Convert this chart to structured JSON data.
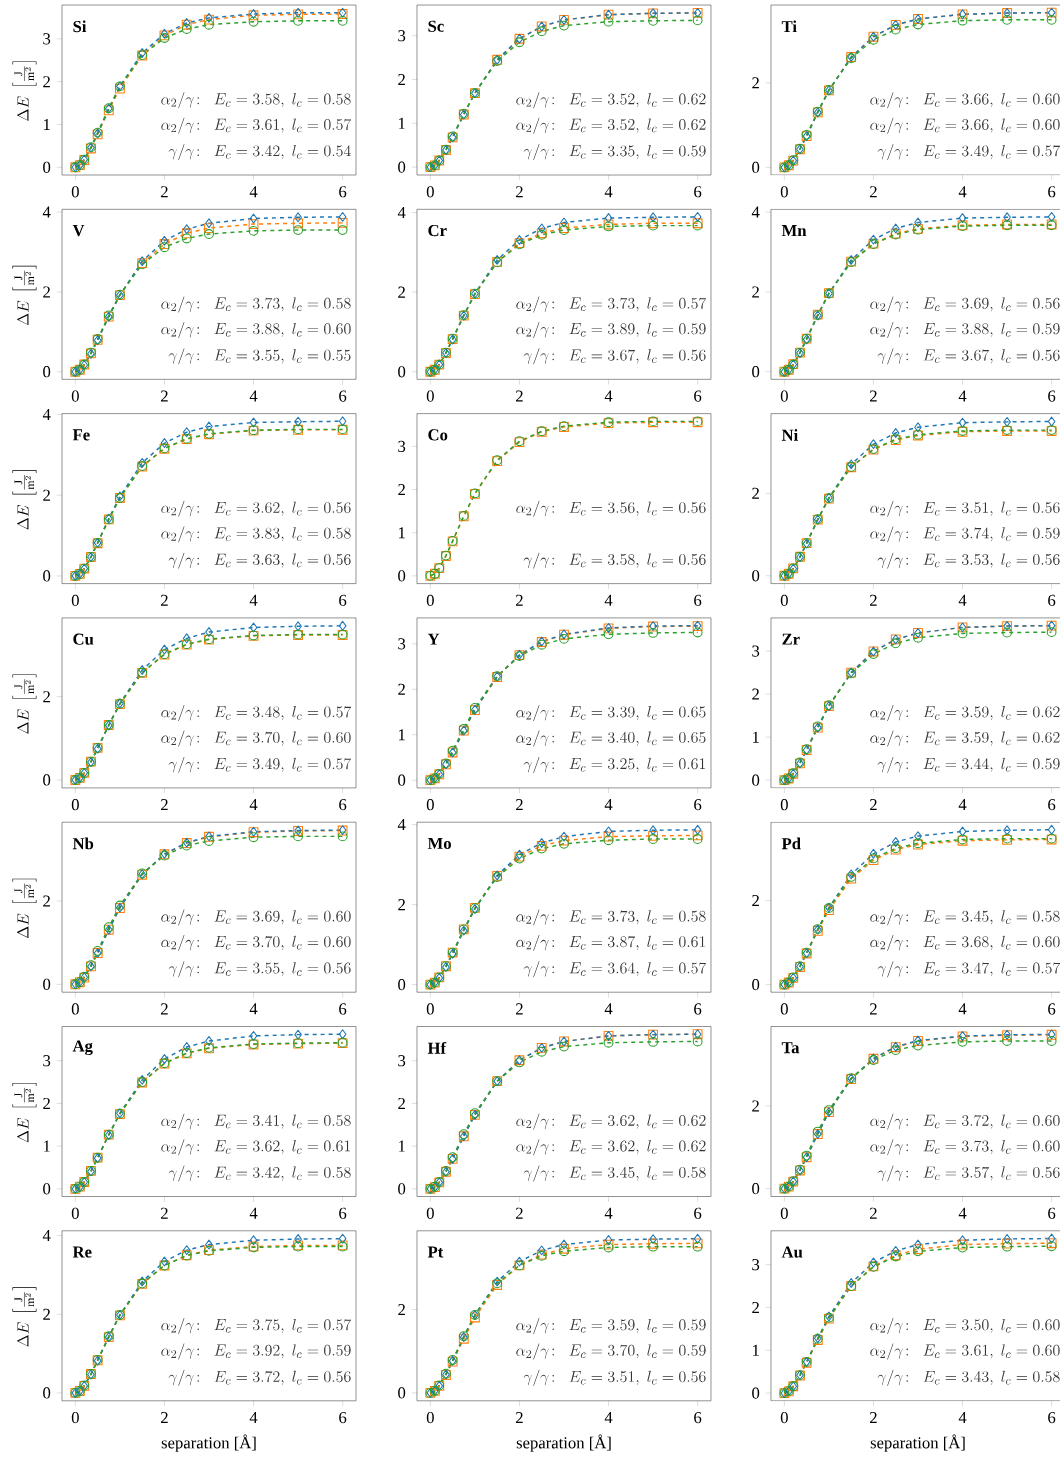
{
  "chart_data": [
    {
      "type": "line",
      "title": "Si",
      "ylabel": "\\Delta E\\;\\left[\\frac{\\mathrm{J}}{\\mathrm{m}^2}\\right]",
      "line_style": "dashed",
      "xlim": [
        -0.3,
        6.3
      ],
      "ylim": [
        -0.18,
        3.79
      ],
      "xticks": [
        0,
        2,
        4,
        6
      ],
      "yticks": [
        0,
        1,
        2,
        3
      ],
      "x": [
        0,
        0.1,
        0.2,
        0.35,
        0.5,
        0.75,
        1,
        1.5,
        2,
        2.5,
        3,
        4,
        5,
        6
      ],
      "series": [
        {
          "color": "#ff7f0e",
          "marker": "square",
          "values": [
            0,
            0.05,
            0.17,
            0.44,
            0.77,
            1.33,
            1.84,
            2.61,
            3.08,
            3.33,
            3.45,
            3.55,
            3.57,
            3.58
          ]
        },
        {
          "color": "#1f77b4",
          "marker": "diamond",
          "values": [
            0,
            0.05,
            0.18,
            0.46,
            0.79,
            1.37,
            1.89,
            2.67,
            3.12,
            3.37,
            3.49,
            3.58,
            3.61,
            3.61
          ]
        },
        {
          "color": "#2ca02c",
          "marker": "circle",
          "values": [
            0,
            0.05,
            0.18,
            0.47,
            0.81,
            1.38,
            1.89,
            2.62,
            3.02,
            3.23,
            3.33,
            3.4,
            3.42,
            3.42
          ]
        }
      ],
      "annotations": [
        "\\alpha_2/\\gamma\\!:\\;\\; E_c = 3.58,\\; l_c = 0.58",
        "\\alpha_2/\\gamma\\!:\\;\\; E_c = 3.61,\\; l_c = 0.57",
        "\\gamma/\\gamma\\!:\\;\\; E_c = 3.42,\\; l_c = 0.54"
      ]
    },
    {
      "type": "line",
      "title": "Sc",
      "line_style": "dashed",
      "xlim": [
        -0.3,
        6.3
      ],
      "ylim": [
        -0.18,
        3.7
      ],
      "xticks": [
        0,
        2,
        4,
        6
      ],
      "yticks": [
        0,
        1,
        2,
        3
      ],
      "x": [
        0,
        0.1,
        0.2,
        0.35,
        0.5,
        0.75,
        1,
        1.5,
        2,
        2.5,
        3,
        4,
        5,
        6
      ],
      "series": [
        {
          "color": "#ff7f0e",
          "marker": "square",
          "values": [
            0,
            0.04,
            0.15,
            0.39,
            0.68,
            1.2,
            1.69,
            2.45,
            2.93,
            3.21,
            3.36,
            3.48,
            3.51,
            3.52
          ]
        },
        {
          "color": "#1f77b4",
          "marker": "diamond",
          "values": [
            0,
            0.04,
            0.15,
            0.39,
            0.68,
            1.2,
            1.69,
            2.45,
            2.93,
            3.21,
            3.36,
            3.48,
            3.51,
            3.52
          ]
        },
        {
          "color": "#2ca02c",
          "marker": "circle",
          "values": [
            0,
            0.04,
            0.15,
            0.4,
            0.7,
            1.22,
            1.69,
            2.42,
            2.85,
            3.1,
            3.23,
            3.32,
            3.34,
            3.35
          ]
        }
      ],
      "annotations": [
        "\\alpha_2/\\gamma\\!:\\;\\; E_c = 3.52,\\; l_c = 0.62",
        "\\alpha_2/\\gamma\\!:\\;\\; E_c = 3.52,\\; l_c = 0.62",
        "\\gamma/\\gamma\\!:\\;\\; E_c = 3.35,\\; l_c = 0.59"
      ]
    },
    {
      "type": "line",
      "title": "Ti",
      "line_style": "dashed",
      "xlim": [
        -0.3,
        6.3
      ],
      "ylim": [
        -0.18,
        3.84
      ],
      "xticks": [
        0,
        2,
        4,
        6
      ],
      "yticks": [
        0,
        2
      ],
      "x": [
        0,
        0.1,
        0.2,
        0.35,
        0.5,
        0.75,
        1,
        1.5,
        2,
        2.5,
        3,
        4,
        5,
        6
      ],
      "series": [
        {
          "color": "#ff7f0e",
          "marker": "square",
          "values": [
            0,
            0.05,
            0.16,
            0.43,
            0.74,
            1.3,
            1.82,
            2.61,
            3.09,
            3.37,
            3.51,
            3.62,
            3.65,
            3.66
          ]
        },
        {
          "color": "#1f77b4",
          "marker": "diamond",
          "values": [
            0,
            0.05,
            0.16,
            0.43,
            0.74,
            1.3,
            1.82,
            2.61,
            3.09,
            3.37,
            3.51,
            3.62,
            3.65,
            3.66
          ]
        },
        {
          "color": "#2ca02c",
          "marker": "circle",
          "values": [
            0,
            0.05,
            0.17,
            0.44,
            0.77,
            1.32,
            1.83,
            2.58,
            3.02,
            3.26,
            3.38,
            3.47,
            3.49,
            3.49
          ]
        }
      ],
      "annotations": [
        "\\alpha_2/\\gamma\\!:\\;\\; E_c = 3.66,\\; l_c = 0.60",
        "\\alpha_2/\\gamma\\!:\\;\\; E_c = 3.66,\\; l_c = 0.60",
        "\\gamma/\\gamma\\!:\\;\\; E_c = 3.49,\\; l_c = 0.57"
      ]
    },
    {
      "type": "line",
      "title": "V",
      "ylabel": "\\Delta E\\;\\left[\\frac{\\mathrm{J}}{\\mathrm{m}^2}\\right]",
      "line_style": "dashed",
      "xlim": [
        -0.3,
        6.3
      ],
      "ylim": [
        -0.19,
        4.07
      ],
      "xticks": [
        0,
        2,
        4,
        6
      ],
      "yticks": [
        0,
        2,
        4
      ],
      "x": [
        0,
        0.1,
        0.2,
        0.35,
        0.5,
        0.75,
        1,
        1.5,
        2,
        2.5,
        3,
        4,
        5,
        6
      ],
      "series": [
        {
          "color": "#ff7f0e",
          "marker": "square",
          "values": [
            0,
            0.05,
            0.18,
            0.46,
            0.8,
            1.38,
            1.92,
            2.72,
            3.2,
            3.47,
            3.6,
            3.7,
            3.72,
            3.73
          ]
        },
        {
          "color": "#1f77b4",
          "marker": "diamond",
          "values": [
            0,
            0.05,
            0.17,
            0.45,
            0.79,
            1.38,
            1.92,
            2.77,
            3.28,
            3.57,
            3.72,
            3.84,
            3.87,
            3.88
          ]
        },
        {
          "color": "#2ca02c",
          "marker": "circle",
          "values": [
            0,
            0.05,
            0.18,
            0.48,
            0.82,
            1.41,
            1.93,
            2.69,
            3.12,
            3.34,
            3.45,
            3.53,
            3.55,
            3.55
          ]
        }
      ],
      "annotations": [
        "\\alpha_2/\\gamma\\!:\\;\\; E_c = 3.73,\\; l_c = 0.58",
        "\\alpha_2/\\gamma\\!:\\;\\; E_c = 3.88,\\; l_c = 0.60",
        "\\gamma/\\gamma\\!:\\;\\; E_c = 3.55,\\; l_c = 0.55"
      ]
    },
    {
      "type": "line",
      "title": "Cr",
      "line_style": "dashed",
      "xlim": [
        -0.3,
        6.3
      ],
      "ylim": [
        -0.19,
        4.08
      ],
      "xticks": [
        0,
        2,
        4,
        6
      ],
      "yticks": [
        0,
        2,
        4
      ],
      "x": [
        0,
        0.1,
        0.2,
        0.35,
        0.5,
        0.75,
        1,
        1.5,
        2,
        2.5,
        3,
        4,
        5,
        6
      ],
      "series": [
        {
          "color": "#ff7f0e",
          "marker": "square",
          "values": [
            0,
            0.05,
            0.18,
            0.47,
            0.82,
            1.41,
            1.95,
            2.76,
            3.23,
            3.48,
            3.61,
            3.7,
            3.73,
            3.73
          ]
        },
        {
          "color": "#1f77b4",
          "marker": "diamond",
          "values": [
            0,
            0.05,
            0.18,
            0.47,
            0.81,
            1.41,
            1.96,
            2.81,
            3.31,
            3.6,
            3.75,
            3.86,
            3.88,
            3.89
          ]
        },
        {
          "color": "#2ca02c",
          "marker": "circle",
          "values": [
            0,
            0.05,
            0.18,
            0.48,
            0.83,
            1.42,
            1.96,
            2.75,
            3.2,
            3.44,
            3.56,
            3.65,
            3.67,
            3.67
          ]
        }
      ],
      "annotations": [
        "\\alpha_2/\\gamma\\!:\\;\\; E_c = 3.73,\\; l_c = 0.57",
        "\\alpha_2/\\gamma\\!:\\;\\; E_c = 3.89,\\; l_c = 0.59",
        "\\gamma/\\gamma\\!:\\;\\; E_c = 3.67,\\; l_c = 0.56"
      ]
    },
    {
      "type": "line",
      "title": "Mn",
      "line_style": "dashed",
      "xlim": [
        -0.3,
        6.3
      ],
      "ylim": [
        -0.19,
        4.07
      ],
      "xticks": [
        0,
        2,
        4,
        6
      ],
      "yticks": [
        0,
        2,
        4
      ],
      "x": [
        0,
        0.1,
        0.2,
        0.35,
        0.5,
        0.75,
        1,
        1.5,
        2,
        2.5,
        3,
        4,
        5,
        6
      ],
      "series": [
        {
          "color": "#ff7f0e",
          "marker": "square",
          "values": [
            0,
            0.05,
            0.19,
            0.48,
            0.83,
            1.43,
            1.97,
            2.76,
            3.21,
            3.46,
            3.58,
            3.67,
            3.69,
            3.69
          ]
        },
        {
          "color": "#1f77b4",
          "marker": "diamond",
          "values": [
            0,
            0.05,
            0.18,
            0.47,
            0.81,
            1.41,
            1.96,
            2.8,
            3.31,
            3.59,
            3.74,
            3.85,
            3.87,
            3.88
          ]
        },
        {
          "color": "#2ca02c",
          "marker": "circle",
          "values": [
            0,
            0.05,
            0.18,
            0.48,
            0.83,
            1.42,
            1.96,
            2.75,
            3.2,
            3.44,
            3.56,
            3.65,
            3.67,
            3.67
          ]
        }
      ],
      "annotations": [
        "\\alpha_2/\\gamma\\!:\\;\\; E_c = 3.69,\\; l_c = 0.56",
        "\\alpha_2/\\gamma\\!:\\;\\; E_c = 3.88,\\; l_c = 0.59",
        "\\gamma/\\gamma\\!:\\;\\; E_c = 3.67,\\; l_c = 0.56"
      ]
    },
    {
      "type": "line",
      "title": "Fe",
      "ylabel": "\\Delta E\\;\\left[\\frac{\\mathrm{J}}{\\mathrm{m}^2}\\right]",
      "line_style": "dashed",
      "xlim": [
        -0.3,
        6.3
      ],
      "ylim": [
        -0.19,
        4.02
      ],
      "xticks": [
        0,
        2,
        4,
        6
      ],
      "yticks": [
        0,
        2,
        4
      ],
      "x": [
        0,
        0.1,
        0.2,
        0.35,
        0.5,
        0.75,
        1,
        1.5,
        2,
        2.5,
        3,
        4,
        5,
        6
      ],
      "series": [
        {
          "color": "#ff7f0e",
          "marker": "square",
          "values": [
            0,
            0.05,
            0.18,
            0.47,
            0.81,
            1.4,
            1.93,
            2.71,
            3.15,
            3.39,
            3.51,
            3.6,
            3.62,
            3.62
          ]
        },
        {
          "color": "#1f77b4",
          "marker": "diamond",
          "values": [
            0,
            0.05,
            0.18,
            0.47,
            0.82,
            1.42,
            1.97,
            2.8,
            3.29,
            3.56,
            3.7,
            3.8,
            3.82,
            3.83
          ]
        },
        {
          "color": "#2ca02c",
          "marker": "circle",
          "values": [
            0,
            0.05,
            0.18,
            0.47,
            0.82,
            1.4,
            1.93,
            2.72,
            3.16,
            3.4,
            3.52,
            3.61,
            3.63,
            3.63
          ]
        }
      ],
      "annotations": [
        "\\alpha_2/\\gamma\\!:\\;\\; E_c = 3.62,\\; l_c = 0.56",
        "\\alpha_2/\\gamma\\!:\\;\\; E_c = 3.83,\\; l_c = 0.58",
        "\\gamma/\\gamma\\!:\\;\\; E_c = 3.63,\\; l_c = 0.56"
      ]
    },
    {
      "type": "line",
      "title": "Co",
      "line_style": "dashed",
      "xlim": [
        -0.3,
        6.3
      ],
      "ylim": [
        -0.18,
        3.76
      ],
      "xticks": [
        0,
        2,
        4,
        6
      ],
      "yticks": [
        0,
        1,
        2,
        3
      ],
      "x": [
        0,
        0.1,
        0.2,
        0.35,
        0.5,
        0.75,
        1,
        1.5,
        2,
        2.5,
        3,
        4,
        5,
        6
      ],
      "series": [
        {
          "color": "#ff7f0e",
          "marker": "square",
          "values": [
            0,
            0.05,
            0.18,
            0.46,
            0.8,
            1.38,
            1.9,
            2.66,
            3.1,
            3.34,
            3.45,
            3.54,
            3.56,
            3.56
          ]
        },
        {
          "color": "#2ca02c",
          "marker": "circle",
          "values": [
            0,
            0.05,
            0.18,
            0.47,
            0.81,
            1.39,
            1.91,
            2.68,
            3.12,
            3.35,
            3.47,
            3.56,
            3.58,
            3.58
          ]
        }
      ],
      "annotations": [
        "\\alpha_2/\\gamma\\!:\\;\\; E_c = 3.56,\\; l_c = 0.56",
        "\\gamma/\\gamma\\!:\\;\\; E_c = 3.58,\\; l_c = 0.56"
      ]
    },
    {
      "type": "line",
      "title": "Ni",
      "line_style": "dashed",
      "xlim": [
        -0.3,
        6.3
      ],
      "ylim": [
        -0.19,
        3.93
      ],
      "xticks": [
        0,
        2,
        4,
        6
      ],
      "yticks": [
        0,
        2
      ],
      "x": [
        0,
        0.1,
        0.2,
        0.35,
        0.5,
        0.75,
        1,
        1.5,
        2,
        2.5,
        3,
        4,
        5,
        6
      ],
      "series": [
        {
          "color": "#ff7f0e",
          "marker": "square",
          "values": [
            0,
            0.05,
            0.18,
            0.46,
            0.79,
            1.36,
            1.87,
            2.63,
            3.06,
            3.29,
            3.4,
            3.49,
            3.51,
            3.51
          ]
        },
        {
          "color": "#1f77b4",
          "marker": "diamond",
          "values": [
            0,
            0.05,
            0.17,
            0.45,
            0.78,
            1.36,
            1.89,
            2.7,
            3.19,
            3.46,
            3.6,
            3.71,
            3.73,
            3.74
          ]
        },
        {
          "color": "#2ca02c",
          "marker": "circle",
          "values": [
            0,
            0.05,
            0.18,
            0.46,
            0.79,
            1.37,
            1.88,
            2.64,
            3.07,
            3.31,
            3.42,
            3.51,
            3.53,
            3.53
          ]
        }
      ],
      "annotations": [
        "\\alpha_2/\\gamma\\!:\\;\\; E_c = 3.51,\\; l_c = 0.56",
        "\\alpha_2/\\gamma\\!:\\;\\; E_c = 3.74,\\; l_c = 0.59",
        "\\gamma/\\gamma\\!:\\;\\; E_c = 3.53,\\; l_c = 0.56"
      ]
    },
    {
      "type": "line",
      "title": "Cu",
      "ylabel": "\\Delta E\\;\\left[\\frac{\\mathrm{J}}{\\mathrm{m}^2}\\right]",
      "line_style": "dashed",
      "xlim": [
        -0.3,
        6.3
      ],
      "ylim": [
        -0.19,
        3.89
      ],
      "xticks": [
        0,
        2,
        4,
        6
      ],
      "yticks": [
        0,
        2
      ],
      "x": [
        0,
        0.1,
        0.2,
        0.35,
        0.5,
        0.75,
        1,
        1.5,
        2,
        2.5,
        3,
        4,
        5,
        6
      ],
      "series": [
        {
          "color": "#ff7f0e",
          "marker": "square",
          "values": [
            0,
            0.05,
            0.17,
            0.44,
            0.77,
            1.32,
            1.82,
            2.57,
            3.01,
            3.25,
            3.37,
            3.46,
            3.48,
            3.48
          ]
        },
        {
          "color": "#1f77b4",
          "marker": "diamond",
          "values": [
            0,
            0.05,
            0.17,
            0.43,
            0.75,
            1.31,
            1.84,
            2.64,
            3.13,
            3.4,
            3.55,
            3.66,
            3.69,
            3.7
          ]
        },
        {
          "color": "#2ca02c",
          "marker": "circle",
          "values": [
            0,
            0.05,
            0.17,
            0.44,
            0.77,
            1.32,
            1.83,
            2.58,
            3.02,
            3.26,
            3.38,
            3.47,
            3.49,
            3.49
          ]
        }
      ],
      "annotations": [
        "\\alpha_2/\\gamma\\!:\\;\\; E_c = 3.48,\\; l_c = 0.57",
        "\\alpha_2/\\gamma\\!:\\;\\; E_c = 3.70,\\; l_c = 0.60",
        "\\gamma/\\gamma\\!:\\;\\; E_c = 3.49,\\; l_c = 0.57"
      ]
    },
    {
      "type": "line",
      "title": "Y",
      "line_style": "dashed",
      "xlim": [
        -0.3,
        6.3
      ],
      "ylim": [
        -0.17,
        3.57
      ],
      "xticks": [
        0,
        2,
        4,
        6
      ],
      "yticks": [
        0,
        1,
        2,
        3
      ],
      "x": [
        0,
        0.1,
        0.2,
        0.35,
        0.5,
        0.75,
        1,
        1.5,
        2,
        2.5,
        3,
        4,
        5,
        6
      ],
      "series": [
        {
          "color": "#ff7f0e",
          "marker": "square",
          "values": [
            0,
            0.04,
            0.13,
            0.35,
            0.61,
            1.09,
            1.54,
            2.27,
            2.75,
            3.04,
            3.2,
            3.34,
            3.38,
            3.39
          ]
        },
        {
          "color": "#1f77b4",
          "marker": "diamond",
          "values": [
            0,
            0.04,
            0.13,
            0.35,
            0.61,
            1.09,
            1.55,
            2.28,
            2.76,
            3.05,
            3.21,
            3.35,
            3.39,
            3.4
          ]
        },
        {
          "color": "#2ca02c",
          "marker": "circle",
          "values": [
            0,
            0.04,
            0.14,
            0.37,
            0.65,
            1.13,
            1.59,
            2.29,
            2.73,
            2.98,
            3.11,
            3.21,
            3.24,
            3.25
          ]
        }
      ],
      "annotations": [
        "\\alpha_2/\\gamma\\!:\\;\\; E_c = 3.39,\\; l_c = 0.65",
        "\\alpha_2/\\gamma\\!:\\;\\; E_c = 3.40,\\; l_c = 0.65",
        "\\gamma/\\gamma\\!:\\;\\; E_c = 3.25,\\; l_c = 0.61"
      ]
    },
    {
      "type": "line",
      "title": "Zr",
      "line_style": "dashed",
      "xlim": [
        -0.3,
        6.3
      ],
      "ylim": [
        -0.18,
        3.77
      ],
      "xticks": [
        0,
        2,
        4,
        6
      ],
      "yticks": [
        0,
        1,
        2,
        3
      ],
      "x": [
        0,
        0.1,
        0.2,
        0.35,
        0.5,
        0.75,
        1,
        1.5,
        2,
        2.5,
        3,
        4,
        5,
        6
      ],
      "series": [
        {
          "color": "#ff7f0e",
          "marker": "square",
          "values": [
            0,
            0.04,
            0.15,
            0.39,
            0.7,
            1.22,
            1.72,
            2.5,
            2.99,
            3.27,
            3.42,
            3.55,
            3.58,
            3.59
          ]
        },
        {
          "color": "#1f77b4",
          "marker": "diamond",
          "values": [
            0,
            0.04,
            0.15,
            0.39,
            0.7,
            1.22,
            1.72,
            2.5,
            2.99,
            3.27,
            3.42,
            3.55,
            3.58,
            3.59
          ]
        },
        {
          "color": "#2ca02c",
          "marker": "circle",
          "values": [
            0,
            0.04,
            0.16,
            0.41,
            0.72,
            1.25,
            1.74,
            2.48,
            2.93,
            3.18,
            3.31,
            3.41,
            3.43,
            3.44
          ]
        }
      ],
      "annotations": [
        "\\alpha_2/\\gamma\\!:\\;\\; E_c = 3.59,\\; l_c = 0.62",
        "\\alpha_2/\\gamma\\!:\\;\\; E_c = 3.59,\\; l_c = 0.62",
        "\\gamma/\\gamma\\!:\\;\\; E_c = 3.44,\\; l_c = 0.59"
      ]
    },
    {
      "type": "line",
      "title": "Nb",
      "ylabel": "\\Delta E\\;\\left[\\frac{\\mathrm{J}}{\\mathrm{m}^2}\\right]",
      "line_style": "dashed",
      "xlim": [
        -0.3,
        6.3
      ],
      "ylim": [
        -0.19,
        3.89
      ],
      "xticks": [
        0,
        2,
        4,
        6
      ],
      "yticks": [
        0,
        2
      ],
      "x": [
        0,
        0.1,
        0.2,
        0.35,
        0.5,
        0.75,
        1,
        1.5,
        2,
        2.5,
        3,
        4,
        5,
        6
      ],
      "series": [
        {
          "color": "#ff7f0e",
          "marker": "square",
          "values": [
            0,
            0.05,
            0.16,
            0.43,
            0.75,
            1.31,
            1.83,
            2.63,
            3.12,
            3.39,
            3.54,
            3.65,
            3.68,
            3.69
          ]
        },
        {
          "color": "#1f77b4",
          "marker": "diamond",
          "values": [
            0,
            0.05,
            0.17,
            0.43,
            0.75,
            1.31,
            1.84,
            2.64,
            3.13,
            3.4,
            3.55,
            3.66,
            3.69,
            3.7
          ]
        },
        {
          "color": "#2ca02c",
          "marker": "circle",
          "values": [
            0,
            0.05,
            0.18,
            0.46,
            0.8,
            1.37,
            1.89,
            2.66,
            3.09,
            3.33,
            3.44,
            3.53,
            3.55,
            3.55
          ]
        }
      ],
      "annotations": [
        "\\alpha_2/\\gamma\\!:\\;\\; E_c = 3.69,\\; l_c = 0.60",
        "\\alpha_2/\\gamma\\!:\\;\\; E_c = 3.70,\\; l_c = 0.60",
        "\\gamma/\\gamma\\!:\\;\\; E_c = 3.55,\\; l_c = 0.56"
      ]
    },
    {
      "type": "line",
      "title": "Mo",
      "line_style": "dashed",
      "xlim": [
        -0.3,
        6.3
      ],
      "ylim": [
        -0.19,
        4.06
      ],
      "xticks": [
        0,
        2,
        4,
        6
      ],
      "yticks": [
        0,
        2,
        4
      ],
      "x": [
        0,
        0.1,
        0.2,
        0.35,
        0.5,
        0.75,
        1,
        1.5,
        2,
        2.5,
        3,
        4,
        5,
        6
      ],
      "series": [
        {
          "color": "#ff7f0e",
          "marker": "square",
          "values": [
            0,
            0.05,
            0.18,
            0.46,
            0.8,
            1.38,
            1.92,
            2.72,
            3.2,
            3.47,
            3.6,
            3.7,
            3.72,
            3.73
          ]
        },
        {
          "color": "#1f77b4",
          "marker": "diamond",
          "values": [
            0,
            0.05,
            0.17,
            0.44,
            0.77,
            1.35,
            1.89,
            2.73,
            3.25,
            3.54,
            3.7,
            3.83,
            3.86,
            3.87
          ]
        },
        {
          "color": "#2ca02c",
          "marker": "circle",
          "values": [
            0,
            0.05,
            0.18,
            0.46,
            0.8,
            1.38,
            1.91,
            2.69,
            3.15,
            3.4,
            3.52,
            3.61,
            3.64,
            3.64
          ]
        }
      ],
      "annotations": [
        "\\alpha_2/\\gamma\\!:\\;\\; E_c = 3.73,\\; l_c = 0.58",
        "\\alpha_2/\\gamma\\!:\\;\\; E_c = 3.87,\\; l_c = 0.61",
        "\\gamma/\\gamma\\!:\\;\\; E_c = 3.64,\\; l_c = 0.57"
      ]
    },
    {
      "type": "line",
      "title": "Pd",
      "line_style": "dashed",
      "xlim": [
        -0.3,
        6.3
      ],
      "ylim": [
        -0.18,
        3.86
      ],
      "xticks": [
        0,
        2,
        4,
        6
      ],
      "yticks": [
        0,
        2
      ],
      "x": [
        0,
        0.1,
        0.2,
        0.35,
        0.5,
        0.75,
        1,
        1.5,
        2,
        2.5,
        3,
        4,
        5,
        6
      ],
      "series": [
        {
          "color": "#ff7f0e",
          "marker": "square",
          "values": [
            0,
            0.05,
            0.16,
            0.42,
            0.74,
            1.28,
            1.77,
            2.52,
            2.96,
            3.21,
            3.33,
            3.42,
            3.44,
            3.45
          ]
        },
        {
          "color": "#1f77b4",
          "marker": "diamond",
          "values": [
            0,
            0.05,
            0.16,
            0.43,
            0.75,
            1.31,
            1.83,
            2.62,
            3.11,
            3.39,
            3.53,
            3.64,
            3.67,
            3.68
          ]
        },
        {
          "color": "#2ca02c",
          "marker": "circle",
          "values": [
            0,
            0.05,
            0.17,
            0.44,
            0.76,
            1.32,
            1.82,
            2.56,
            3.0,
            3.24,
            3.36,
            3.45,
            3.47,
            3.47
          ]
        }
      ],
      "annotations": [
        "\\alpha_2/\\gamma\\!:\\;\\; E_c = 3.45,\\; l_c = 0.58",
        "\\alpha_2/\\gamma\\!:\\;\\; E_c = 3.68,\\; l_c = 0.60",
        "\\gamma/\\gamma\\!:\\;\\; E_c = 3.47,\\; l_c = 0.57"
      ]
    },
    {
      "type": "line",
      "title": "Ag",
      "ylabel": "\\Delta E\\;\\left[\\frac{\\mathrm{J}}{\\mathrm{m}^2}\\right]",
      "line_style": "dashed",
      "xlim": [
        -0.3,
        6.3
      ],
      "ylim": [
        -0.18,
        3.8
      ],
      "xticks": [
        0,
        2,
        4,
        6
      ],
      "yticks": [
        0,
        1,
        2,
        3
      ],
      "x": [
        0,
        0.1,
        0.2,
        0.35,
        0.5,
        0.75,
        1,
        1.5,
        2,
        2.5,
        3,
        4,
        5,
        6
      ],
      "series": [
        {
          "color": "#ff7f0e",
          "marker": "square",
          "values": [
            0,
            0.05,
            0.16,
            0.42,
            0.73,
            1.27,
            1.75,
            2.49,
            2.93,
            3.17,
            3.29,
            3.38,
            3.4,
            3.41
          ]
        },
        {
          "color": "#1f77b4",
          "marker": "diamond",
          "values": [
            0,
            0.04,
            0.16,
            0.41,
            0.72,
            1.26,
            1.77,
            2.55,
            3.04,
            3.32,
            3.46,
            3.58,
            3.61,
            3.62
          ]
        },
        {
          "color": "#2ca02c",
          "marker": "circle",
          "values": [
            0,
            0.05,
            0.16,
            0.42,
            0.73,
            1.27,
            1.76,
            2.5,
            2.94,
            3.18,
            3.3,
            3.39,
            3.41,
            3.42
          ]
        }
      ],
      "annotations": [
        "\\alpha_2/\\gamma\\!:\\;\\; E_c = 3.41,\\; l_c = 0.58",
        "\\alpha_2/\\gamma\\!:\\;\\; E_c = 3.62,\\; l_c = 0.61",
        "\\gamma/\\gamma\\!:\\;\\; E_c = 3.42,\\; l_c = 0.58"
      ]
    },
    {
      "type": "line",
      "title": "Hf",
      "line_style": "dashed",
      "xlim": [
        -0.3,
        6.3
      ],
      "ylim": [
        -0.18,
        3.8
      ],
      "xticks": [
        0,
        2,
        4,
        6
      ],
      "yticks": [
        0,
        1,
        2,
        3
      ],
      "x": [
        0,
        0.1,
        0.2,
        0.35,
        0.5,
        0.75,
        1,
        1.5,
        2,
        2.5,
        3,
        4,
        5,
        6
      ],
      "series": [
        {
          "color": "#ff7f0e",
          "marker": "square",
          "values": [
            0,
            0.04,
            0.15,
            0.4,
            0.7,
            1.23,
            1.73,
            2.52,
            3.01,
            3.3,
            3.45,
            3.58,
            3.61,
            3.62
          ]
        },
        {
          "color": "#1f77b4",
          "marker": "diamond",
          "values": [
            0,
            0.04,
            0.15,
            0.4,
            0.7,
            1.23,
            1.73,
            2.52,
            3.01,
            3.3,
            3.45,
            3.58,
            3.61,
            3.62
          ]
        },
        {
          "color": "#2ca02c",
          "marker": "circle",
          "values": [
            0,
            0.05,
            0.16,
            0.42,
            0.74,
            1.28,
            1.77,
            2.52,
            2.96,
            3.21,
            3.33,
            3.42,
            3.44,
            3.45
          ]
        }
      ],
      "annotations": [
        "\\alpha_2/\\gamma\\!:\\;\\; E_c = 3.62,\\; l_c = 0.62",
        "\\alpha_2/\\gamma\\!:\\;\\; E_c = 3.62,\\; l_c = 0.62",
        "\\gamma/\\gamma\\!:\\;\\; E_c = 3.45,\\; l_c = 0.58"
      ]
    },
    {
      "type": "line",
      "title": "Ta",
      "line_style": "dashed",
      "xlim": [
        -0.3,
        6.3
      ],
      "ylim": [
        -0.19,
        3.92
      ],
      "xticks": [
        0,
        2,
        4,
        6
      ],
      "yticks": [
        0,
        2
      ],
      "x": [
        0,
        0.1,
        0.2,
        0.35,
        0.5,
        0.75,
        1,
        1.5,
        2,
        2.5,
        3,
        4,
        5,
        6
      ],
      "series": [
        {
          "color": "#ff7f0e",
          "marker": "square",
          "values": [
            0,
            0.05,
            0.17,
            0.44,
            0.76,
            1.32,
            1.85,
            2.65,
            3.14,
            3.42,
            3.57,
            3.68,
            3.71,
            3.72
          ]
        },
        {
          "color": "#1f77b4",
          "marker": "diamond",
          "values": [
            0,
            0.05,
            0.17,
            0.44,
            0.76,
            1.32,
            1.85,
            2.66,
            3.15,
            3.43,
            3.58,
            3.69,
            3.72,
            3.73
          ]
        },
        {
          "color": "#2ca02c",
          "marker": "circle",
          "values": [
            0,
            0.05,
            0.18,
            0.46,
            0.8,
            1.38,
            1.9,
            2.67,
            3.11,
            3.35,
            3.46,
            3.55,
            3.57,
            3.57
          ]
        }
      ],
      "annotations": [
        "\\alpha_2/\\gamma\\!:\\;\\; E_c = 3.72,\\; l_c = 0.60",
        "\\alpha_2/\\gamma\\!:\\;\\; E_c = 3.73,\\; l_c = 0.60",
        "\\gamma/\\gamma\\!:\\;\\; E_c = 3.57,\\; l_c = 0.56"
      ]
    },
    {
      "type": "line",
      "title": "Re",
      "xlabel": "separation [Å]",
      "ylabel": "\\Delta E\\;\\left[\\frac{\\mathrm{J}}{\\mathrm{m}^2}\\right]",
      "line_style": "dashed",
      "xlim": [
        -0.3,
        6.3
      ],
      "ylim": [
        -0.2,
        4.12
      ],
      "xticks": [
        0,
        2,
        4,
        6
      ],
      "yticks": [
        0,
        2,
        4
      ],
      "x": [
        0,
        0.1,
        0.2,
        0.35,
        0.5,
        0.75,
        1,
        1.5,
        2,
        2.5,
        3,
        4,
        5,
        6
      ],
      "series": [
        {
          "color": "#ff7f0e",
          "marker": "square",
          "values": [
            0,
            0.05,
            0.18,
            0.48,
            0.83,
            1.42,
            1.97,
            2.77,
            3.24,
            3.5,
            3.63,
            3.72,
            3.75,
            3.75
          ]
        },
        {
          "color": "#1f77b4",
          "marker": "diamond",
          "values": [
            0,
            0.05,
            0.18,
            0.47,
            0.82,
            1.42,
            1.98,
            2.83,
            3.34,
            3.63,
            3.77,
            3.88,
            3.91,
            3.92
          ]
        },
        {
          "color": "#2ca02c",
          "marker": "circle",
          "values": [
            0,
            0.05,
            0.19,
            0.48,
            0.84,
            1.44,
            1.98,
            2.78,
            3.24,
            3.49,
            3.61,
            3.7,
            3.72,
            3.72
          ]
        }
      ],
      "annotations": [
        "\\alpha_2/\\gamma\\!:\\;\\; E_c = 3.75,\\; l_c = 0.57",
        "\\alpha_2/\\gamma\\!:\\;\\; E_c = 3.92,\\; l_c = 0.59",
        "\\gamma/\\gamma\\!:\\;\\; E_c = 3.72,\\; l_c = 0.56"
      ]
    },
    {
      "type": "line",
      "title": "Pt",
      "xlabel": "separation [Å]",
      "line_style": "dashed",
      "xlim": [
        -0.3,
        6.3
      ],
      "ylim": [
        -0.19,
        3.89
      ],
      "xticks": [
        0,
        2,
        4,
        6
      ],
      "yticks": [
        0,
        2
      ],
      "x": [
        0,
        0.1,
        0.2,
        0.35,
        0.5,
        0.75,
        1,
        1.5,
        2,
        2.5,
        3,
        4,
        5,
        6
      ],
      "series": [
        {
          "color": "#ff7f0e",
          "marker": "square",
          "values": [
            0,
            0.05,
            0.17,
            0.43,
            0.75,
            1.3,
            1.81,
            2.59,
            3.06,
            3.32,
            3.46,
            3.56,
            3.58,
            3.59
          ]
        },
        {
          "color": "#1f77b4",
          "marker": "diamond",
          "values": [
            0,
            0.05,
            0.17,
            0.44,
            0.77,
            1.34,
            1.87,
            2.67,
            3.15,
            3.42,
            3.56,
            3.67,
            3.69,
            3.7
          ]
        },
        {
          "color": "#2ca02c",
          "marker": "circle",
          "values": [
            0,
            0.05,
            0.18,
            0.46,
            0.79,
            1.36,
            1.87,
            2.63,
            3.06,
            3.29,
            3.4,
            3.49,
            3.51,
            3.51
          ]
        }
      ],
      "annotations": [
        "\\alpha_2/\\gamma\\!:\\;\\; E_c = 3.59,\\; l_c = 0.59",
        "\\alpha_2/\\gamma\\!:\\;\\; E_c = 3.70,\\; l_c = 0.59",
        "\\gamma/\\gamma\\!:\\;\\; E_c = 3.51,\\; l_c = 0.56"
      ]
    },
    {
      "type": "line",
      "title": "Au",
      "xlabel": "separation [Å]",
      "line_style": "dashed",
      "xlim": [
        -0.3,
        6.3
      ],
      "ylim": [
        -0.18,
        3.79
      ],
      "xticks": [
        0,
        2,
        4,
        6
      ],
      "yticks": [
        0,
        1,
        2,
        3
      ],
      "x": [
        0,
        0.1,
        0.2,
        0.35,
        0.5,
        0.75,
        1,
        1.5,
        2,
        2.5,
        3,
        4,
        5,
        6
      ],
      "series": [
        {
          "color": "#ff7f0e",
          "marker": "square",
          "values": [
            0,
            0.04,
            0.16,
            0.41,
            0.71,
            1.24,
            1.74,
            2.5,
            2.96,
            3.22,
            3.36,
            3.47,
            3.49,
            3.5
          ]
        },
        {
          "color": "#1f77b4",
          "marker": "diamond",
          "values": [
            0,
            0.04,
            0.16,
            0.42,
            0.73,
            1.28,
            1.79,
            2.57,
            3.05,
            3.32,
            3.47,
            3.57,
            3.6,
            3.61
          ]
        },
        {
          "color": "#2ca02c",
          "marker": "circle",
          "values": [
            0,
            0.05,
            0.16,
            0.42,
            0.73,
            1.27,
            1.76,
            2.5,
            2.95,
            3.19,
            3.31,
            3.4,
            3.42,
            3.43
          ]
        }
      ],
      "annotations": [
        "\\alpha_2/\\gamma\\!:\\;\\; E_c = 3.50,\\; l_c = 0.60",
        "\\alpha_2/\\gamma\\!:\\;\\; E_c = 3.61,\\; l_c = 0.60",
        "\\gamma/\\gamma\\!:\\;\\; E_c = 3.43,\\; l_c = 0.58"
      ]
    }
  ]
}
